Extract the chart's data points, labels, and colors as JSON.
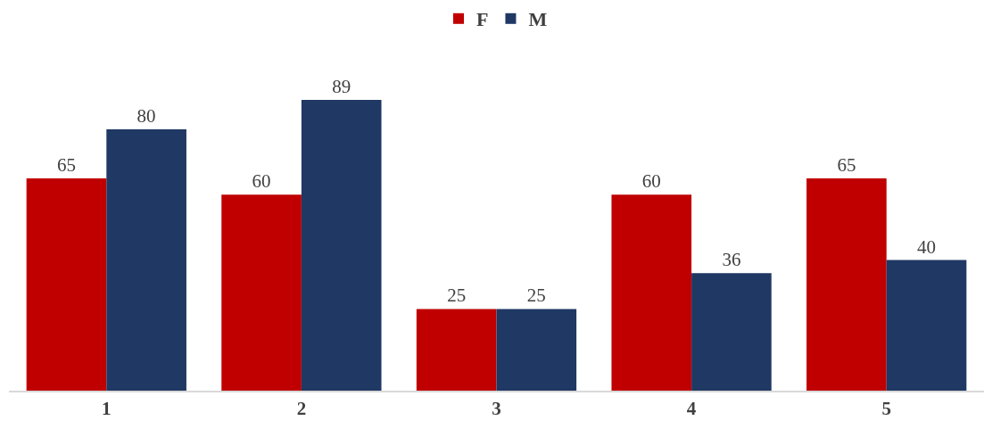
{
  "chart_data": {
    "type": "bar",
    "categories": [
      "1",
      "2",
      "3",
      "4",
      "5"
    ],
    "series": [
      {
        "name": "F",
        "color": "#c00000",
        "values": [
          65,
          60,
          25,
          60,
          65
        ]
      },
      {
        "name": "M",
        "color": "#1f3864",
        "values": [
          80,
          89,
          25,
          36,
          40
        ]
      }
    ],
    "data_labels": true,
    "legend": "top"
  }
}
